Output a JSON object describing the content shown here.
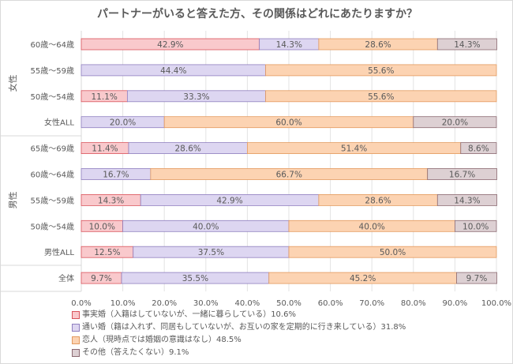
{
  "chart_data": {
    "type": "bar",
    "stacked": true,
    "orientation": "horizontal",
    "title": "パートナーがいると答えた方、その関係はどれにあたりますか？",
    "groups": [
      {
        "label": "女性",
        "rows": [
          0,
          1,
          2,
          3
        ]
      },
      {
        "label": "男性",
        "rows": [
          4,
          5,
          6,
          7,
          8
        ]
      },
      {
        "label": "",
        "rows": [
          9
        ]
      }
    ],
    "categories": [
      "60歳～64歳",
      "55歳～59歳",
      "50歳～54歳",
      "女性ALL",
      "65歳～69歳",
      "60歳～64歳",
      "55歳～59歳",
      "50歳～54歳",
      "男性ALL",
      "全体"
    ],
    "series": [
      {
        "name": "事実婚（入籍はしていないが、一緒に暮らしている）10.6%",
        "color": "#f9c9cc",
        "stroke": "#d9545c",
        "values": [
          42.9,
          0,
          11.1,
          0,
          11.4,
          0,
          14.3,
          10.0,
          12.5,
          9.7
        ]
      },
      {
        "name": "通い婚（籍は入れず、同居もしていないが、お互いの家を定期的に行き来している）31.8%",
        "color": "#ddd6f1",
        "stroke": "#8f7fbf",
        "values": [
          14.3,
          44.4,
          33.3,
          20.0,
          28.6,
          16.7,
          42.9,
          40.0,
          37.5,
          35.5
        ]
      },
      {
        "name": "恋人（現時点では婚姻の意識はなし）48.5%",
        "color": "#fcd3b2",
        "stroke": "#e39a5e",
        "values": [
          28.6,
          55.6,
          55.6,
          60.0,
          51.4,
          66.7,
          28.6,
          40.0,
          50.0,
          45.2
        ]
      },
      {
        "name": "その他（答えたくない）9.1%",
        "color": "#ddd0d3",
        "stroke": "#8c6a72",
        "values": [
          14.3,
          0,
          0,
          20.0,
          8.6,
          16.7,
          14.3,
          10.0,
          0,
          9.7
        ]
      }
    ],
    "xticks": [
      "0.0%",
      "10.0%",
      "20.0%",
      "30.0%",
      "40.0%",
      "50.0%",
      "60.0%",
      "70.0%",
      "80.0%",
      "90.0%",
      "100.0%"
    ],
    "xlim": [
      0,
      100
    ],
    "grid": true,
    "legend": "bottom-left"
  }
}
